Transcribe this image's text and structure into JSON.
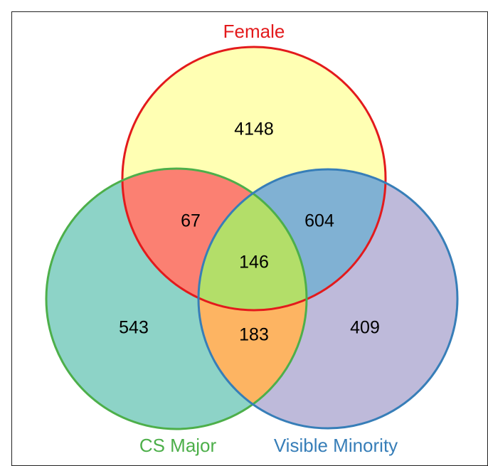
{
  "chart_data": {
    "type": "venn",
    "sets": [
      {
        "name": "Female",
        "color": "#e31a1c"
      },
      {
        "name": "CS Major",
        "color": "#4daf4a"
      },
      {
        "name": "Visible Minority",
        "color": "#377eb8"
      }
    ],
    "regions": [
      {
        "sets": [
          0
        ],
        "value": 4148,
        "color": "#ffffb3"
      },
      {
        "sets": [
          0,
          1
        ],
        "value": 67,
        "color": "#fb8072"
      },
      {
        "sets": [
          0,
          2
        ],
        "value": 604,
        "color": "#80b1d3"
      },
      {
        "sets": [
          0,
          1,
          2
        ],
        "value": 146,
        "color": "#b3de69"
      },
      {
        "sets": [
          1
        ],
        "value": 543,
        "color": "#8dd3c7"
      },
      {
        "sets": [
          1,
          2
        ],
        "value": 183,
        "color": "#fdb462"
      },
      {
        "sets": [
          2
        ],
        "value": 409,
        "color": "#bebada"
      }
    ]
  }
}
